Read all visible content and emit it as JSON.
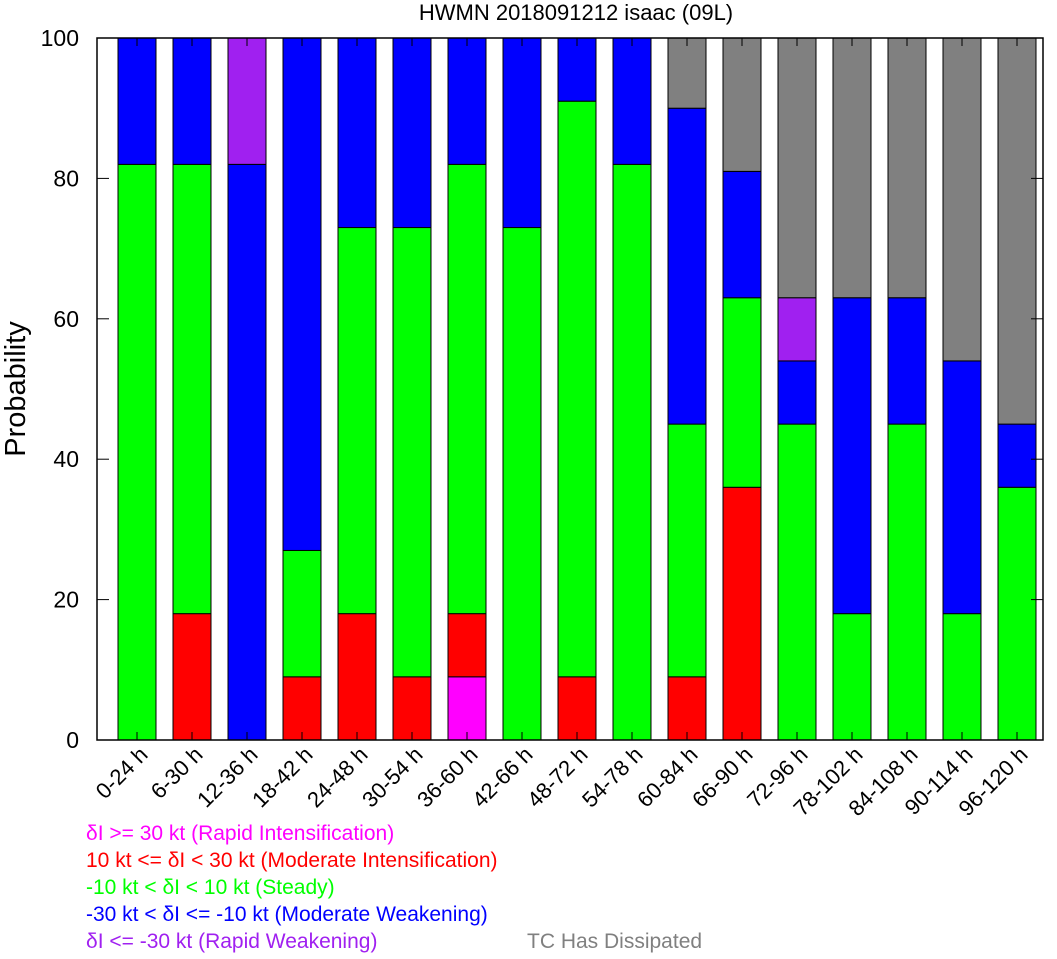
{
  "chart_data": {
    "type": "bar",
    "stacked": true,
    "title": "HWMN 2018091212 isaac (09L)",
    "xlabel": "",
    "ylabel": "Probability",
    "ylim": [
      0,
      100
    ],
    "yticks": [
      0,
      20,
      40,
      60,
      80,
      100
    ],
    "categories": [
      "0-24 h",
      "6-30 h",
      "12-36 h",
      "18-42 h",
      "24-48 h",
      "30-54 h",
      "36-60 h",
      "42-66 h",
      "48-72 h",
      "54-78 h",
      "60-84 h",
      "66-90 h",
      "72-96 h",
      "78-102 h",
      "84-108 h",
      "90-114 h",
      "96-120 h"
    ],
    "series": [
      {
        "name": "δI >= 30 kt (Rapid Intensification)",
        "color": "#ff00ff",
        "values": [
          0,
          0,
          0,
          0,
          0,
          0,
          9,
          0,
          0,
          0,
          0,
          0,
          0,
          0,
          0,
          0,
          0
        ]
      },
      {
        "name": "10 kt <= δI < 30 kt (Moderate Intensification)",
        "color": "#ff0000",
        "values": [
          0,
          18,
          0,
          9,
          18,
          9,
          9,
          0,
          9,
          0,
          9,
          36,
          0,
          0,
          0,
          0,
          0
        ]
      },
      {
        "name": "-10 kt < δI < 10 kt (Steady)",
        "color": "#00ff00",
        "values": [
          82,
          64,
          0,
          18,
          55,
          64,
          64,
          73,
          82,
          82,
          36,
          27,
          45,
          18,
          45,
          18,
          36
        ]
      },
      {
        "name": "-30 kt < δI <= -10 kt (Moderate Weakening)",
        "color": "#0000ff",
        "values": [
          18,
          18,
          82,
          73,
          27,
          27,
          18,
          27,
          9,
          18,
          45,
          18,
          9,
          45,
          18,
          36,
          9
        ]
      },
      {
        "name": "δI <= -30 kt (Rapid Weakening)",
        "color": "#a020f0",
        "values": [
          0,
          0,
          18,
          0,
          0,
          0,
          0,
          0,
          0,
          0,
          0,
          0,
          9,
          0,
          0,
          0,
          0
        ]
      },
      {
        "name": "TC Has Dissipated",
        "color": "#808080",
        "values": [
          0,
          0,
          0,
          0,
          0,
          0,
          0,
          0,
          0,
          0,
          10,
          19,
          37,
          37,
          37,
          46,
          55
        ]
      }
    ],
    "legend": [
      {
        "text": "δI >= 30 kt (Rapid Intensification)",
        "color": "#ff00ff"
      },
      {
        "text": "10 kt <= δI < 30 kt (Moderate Intensification)",
        "color": "#ff0000"
      },
      {
        "text": "-10 kt < δI < 10 kt (Steady)",
        "color": "#00ff00"
      },
      {
        "text": "-30 kt < δI <= -10 kt (Moderate Weakening)",
        "color": "#0000ff"
      },
      {
        "text": "δI <= -30 kt (Rapid Weakening)",
        "color": "#a020f0"
      },
      {
        "text": "TC Has Dissipated",
        "color": "#808080"
      }
    ],
    "legend_placement": "bottom-left",
    "grid": false
  }
}
